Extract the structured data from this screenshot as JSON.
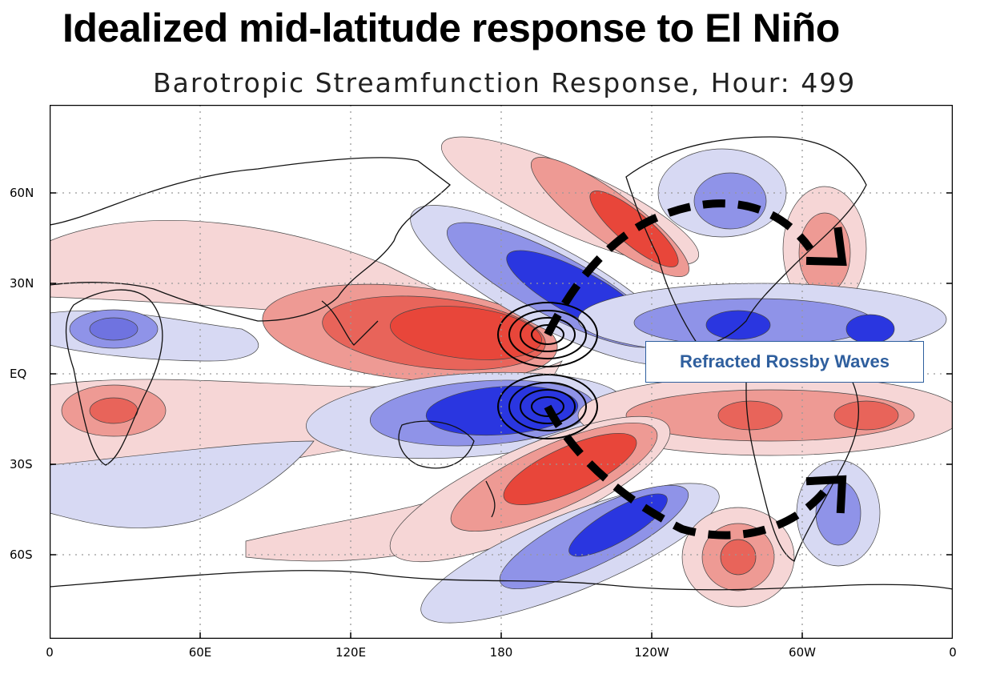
{
  "heading": "Idealized mid-latitude response to El Niño",
  "plot": {
    "title": "Barotropic Streamfunction Response, Hour: 499",
    "lat_labels": [
      "60N",
      "30N",
      "EQ",
      "30S",
      "60S"
    ],
    "lon_labels": [
      "0",
      "60E",
      "120E",
      "180",
      "120W",
      "60W",
      "0"
    ],
    "annotation": "Refracted Rossby Waves",
    "colors": {
      "positive_light": "#f6d6d6",
      "positive_mid": "#ee9a94",
      "positive_strong": "#e8463a",
      "negative_light": "#d7d9f3",
      "negative_mid": "#8f93e8",
      "negative_strong": "#2a36e0",
      "arrow": "#000000",
      "annotation_text": "#2f5f9e"
    }
  }
}
